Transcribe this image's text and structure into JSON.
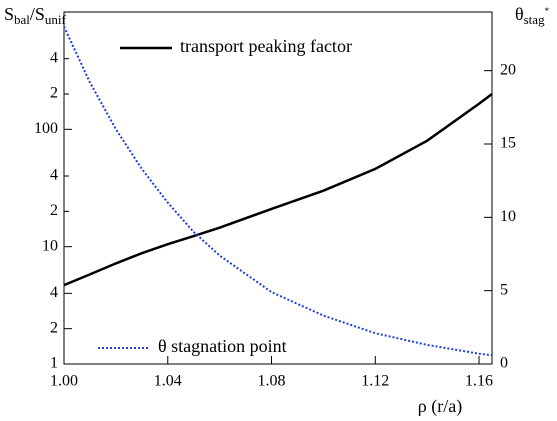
{
  "chart_data": {
    "type": "line",
    "ylabel_parts": [
      "S",
      "bal",
      "/S",
      "unif"
    ],
    "y2label_parts": [
      "θ",
      "stag",
      "*"
    ],
    "xlabel": "ρ (r/a)",
    "x": [
      1.0,
      1.01,
      1.02,
      1.03,
      1.04,
      1.05,
      1.06,
      1.08,
      1.1,
      1.12,
      1.14,
      1.16,
      1.165
    ],
    "series": [
      {
        "name": "transport peaking factor",
        "color": "#000000",
        "dash": "solid",
        "axis": "y",
        "values": [
          4.7,
          5.8,
          7.2,
          8.8,
          10.5,
          12.3,
          14.5,
          21,
          30,
          46,
          80,
          165,
          200
        ]
      },
      {
        "name": "θ stagnation point",
        "color": "#1f3fe0",
        "dash": "dotted",
        "axis": "y2",
        "values": [
          23,
          19.2,
          16.0,
          13.3,
          11.0,
          9.0,
          7.4,
          4.9,
          3.3,
          2.1,
          1.3,
          0.7,
          0.6
        ]
      }
    ],
    "xlim": [
      1.0,
      1.165
    ],
    "xticks": [
      {
        "value": 1.0,
        "label": "1.00"
      },
      {
        "value": 1.04,
        "label": "1.04"
      },
      {
        "value": 1.08,
        "label": "1.08"
      },
      {
        "value": 1.12,
        "label": "1.12"
      },
      {
        "value": 1.16,
        "label": "1.16"
      }
    ],
    "ylim": [
      1,
      1000
    ],
    "ylog": true,
    "yticks": [
      1,
      2,
      4,
      10,
      {
        "value": 20,
        "label": "2"
      },
      {
        "value": 40,
        "label": "4"
      },
      100,
      {
        "value": 200,
        "label": "2"
      },
      {
        "value": 400,
        "label": "4"
      }
    ],
    "y2lim": [
      0,
      24
    ],
    "y2ticks": [
      0,
      5,
      10,
      15,
      20
    ]
  }
}
